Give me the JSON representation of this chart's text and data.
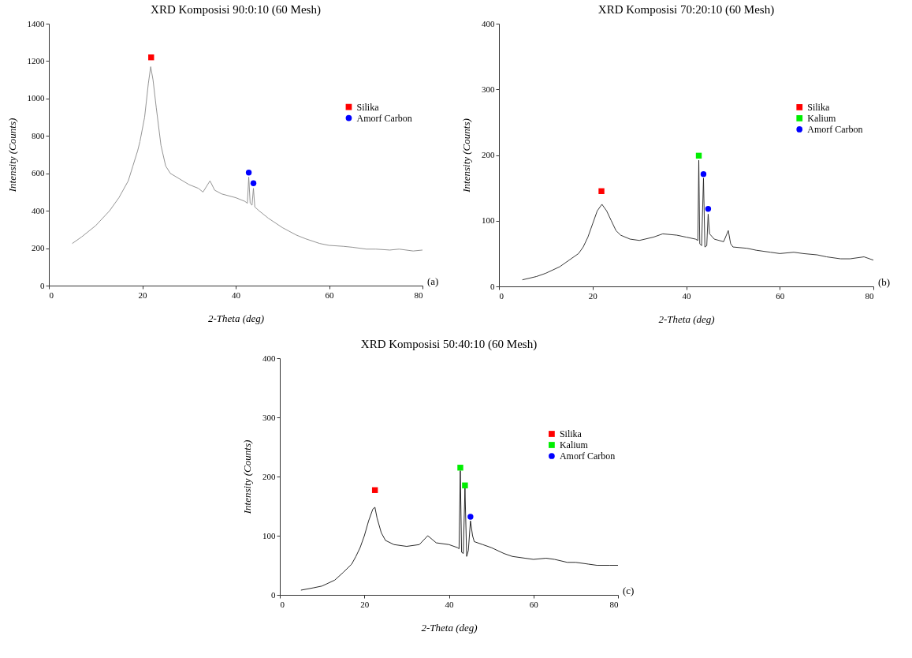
{
  "chart_data": [
    {
      "type": "line",
      "title": "XRD Komposisi 90:0:10 (60 Mesh)",
      "xlabel": "2-Theta (deg)",
      "ylabel": "Intensity (Counts)",
      "xlim": [
        0,
        80
      ],
      "xticks": [
        0,
        20,
        40,
        60,
        80
      ],
      "ylim": [
        0,
        1400
      ],
      "yticks": [
        0,
        200,
        400,
        600,
        800,
        1000,
        1200,
        1400
      ],
      "legend": "right",
      "annotations": [
        "(a)"
      ],
      "series": [
        {
          "color": "#888888",
          "x": [
            5,
            7,
            10,
            13,
            15,
            17,
            18,
            19,
            19.5,
            20.5,
            21.3,
            21.8,
            22.3,
            23,
            24,
            25,
            26,
            28,
            30,
            32,
            33,
            34.5,
            35.5,
            37,
            40,
            42,
            42.5,
            42.8,
            43.1,
            43.5,
            43.8,
            44.1,
            45,
            47,
            50,
            53,
            55,
            58,
            60,
            63,
            65,
            68,
            70,
            73,
            75,
            78,
            80
          ],
          "values": [
            225,
            260,
            320,
            400,
            470,
            560,
            640,
            720,
            770,
            900,
            1080,
            1170,
            1100,
            950,
            750,
            640,
            600,
            570,
            540,
            520,
            500,
            560,
            510,
            490,
            470,
            450,
            440,
            580,
            440,
            430,
            520,
            420,
            400,
            360,
            310,
            270,
            250,
            225,
            215,
            210,
            205,
            195,
            195,
            190,
            195,
            185,
            190
          ]
        },
        {
          "type": "scatter",
          "name": "Silika",
          "color": "#ff0000",
          "marker": "square",
          "x": [
            21.9
          ],
          "values": [
            1220
          ]
        },
        {
          "type": "scatter",
          "name": "Amorf Carbon",
          "color": "#0000ff",
          "marker": "circle",
          "x": [
            42.8,
            43.8
          ],
          "values": [
            604,
            547
          ]
        }
      ]
    },
    {
      "type": "line",
      "title": "XRD Komposisi 70:20:10 (60 Mesh)",
      "xlabel": "2-Theta (deg)",
      "ylabel": "Intensity (Counts)",
      "xlim": [
        0,
        80
      ],
      "xticks": [
        0,
        20,
        40,
        60,
        80
      ],
      "ylim": [
        0,
        400
      ],
      "yticks": [
        0,
        100,
        200,
        300,
        400
      ],
      "legend": "right",
      "annotations": [
        "(b)"
      ],
      "series": [
        {
          "color": "#222222",
          "x": [
            5,
            8,
            10,
            13,
            15,
            17,
            18,
            19,
            20,
            21,
            22,
            23,
            24,
            25,
            26,
            28,
            30,
            33,
            35,
            38,
            40,
            42,
            42.5,
            42.7,
            42.9,
            43.3,
            43.7,
            44,
            44.4,
            44.7,
            45,
            46,
            48,
            49,
            49.5,
            50,
            53,
            55,
            58,
            60,
            63,
            65,
            68,
            70,
            73,
            75,
            78,
            80
          ],
          "values": [
            10,
            15,
            20,
            30,
            40,
            50,
            60,
            75,
            95,
            115,
            125,
            115,
            100,
            85,
            78,
            72,
            70,
            75,
            80,
            78,
            75,
            72,
            70,
            192,
            65,
            62,
            165,
            60,
            62,
            110,
            80,
            72,
            68,
            85,
            65,
            60,
            58,
            55,
            52,
            50,
            52,
            50,
            48,
            45,
            42,
            42,
            45,
            40
          ]
        },
        {
          "type": "scatter",
          "name": "Silika",
          "color": "#ff0000",
          "marker": "square",
          "x": [
            21.9
          ],
          "values": [
            145
          ]
        },
        {
          "type": "scatter",
          "name": "Kalium",
          "color": "#00ee00",
          "marker": "square",
          "x": [
            42.7
          ],
          "values": [
            199
          ]
        },
        {
          "type": "scatter",
          "name": "Amorf Carbon",
          "color": "#0000ff",
          "marker": "circle",
          "x": [
            43.7,
            44.7
          ],
          "values": [
            171,
            118
          ]
        }
      ]
    },
    {
      "type": "line",
      "title": "XRD Komposisi 50:40:10 (60 Mesh)",
      "xlabel": "2-Theta (deg)",
      "ylabel": "Intensity (Counts)",
      "xlim": [
        0,
        80
      ],
      "xticks": [
        0,
        20,
        40,
        60,
        80
      ],
      "ylim": [
        0,
        400
      ],
      "yticks": [
        0,
        100,
        200,
        300,
        400
      ],
      "legend": "right",
      "annotations": [
        "(c)"
      ],
      "series": [
        {
          "color": "#111111",
          "x": [
            5,
            8,
            10,
            13,
            15,
            17,
            18,
            19,
            20,
            21,
            22,
            22.5,
            23,
            24,
            25,
            27,
            30,
            33,
            35,
            37,
            40,
            42,
            42.4,
            42.7,
            43,
            43.4,
            43.8,
            44.2,
            44.6,
            45.1,
            45.6,
            46,
            48,
            50,
            53,
            55,
            58,
            60,
            63,
            65,
            68,
            70,
            73,
            75,
            78,
            80
          ],
          "values": [
            8,
            12,
            15,
            25,
            38,
            52,
            65,
            80,
            100,
            125,
            145,
            148,
            130,
            105,
            92,
            85,
            82,
            85,
            100,
            88,
            85,
            80,
            78,
            210,
            72,
            70,
            180,
            65,
            75,
            125,
            100,
            90,
            85,
            80,
            70,
            65,
            62,
            60,
            62,
            60,
            55,
            55,
            52,
            50,
            50,
            50
          ]
        },
        {
          "type": "scatter",
          "name": "Silika",
          "color": "#ff0000",
          "marker": "square",
          "x": [
            22.5
          ],
          "values": [
            177
          ]
        },
        {
          "type": "scatter",
          "name": "Kalium",
          "color": "#00ee00",
          "marker": "square",
          "x": [
            42.7,
            43.8
          ],
          "values": [
            215,
            185
          ]
        },
        {
          "type": "scatter",
          "name": "Amorf Carbon",
          "color": "#0000ff",
          "marker": "circle",
          "x": [
            45.1
          ],
          "values": [
            132
          ]
        }
      ]
    }
  ]
}
